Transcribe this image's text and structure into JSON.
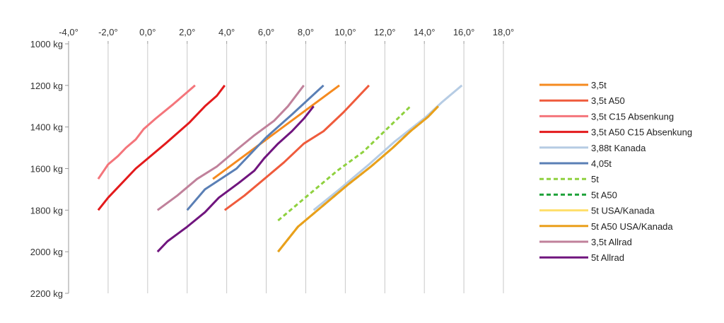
{
  "chart_data": {
    "type": "line",
    "title": "",
    "xlabel": "",
    "ylabel": "",
    "x_axis_position": "top",
    "y_axis_reversed": true,
    "xlim": [
      -4,
      18
    ],
    "ylim": [
      1000,
      2200
    ],
    "x_ticks": [
      -4,
      -2,
      0,
      2,
      4,
      6,
      8,
      10,
      12,
      14,
      16,
      18
    ],
    "x_tick_labels": [
      "-4,0°",
      "-2,0°",
      "0,0°",
      "2,0°",
      "4,0°",
      "6,0°",
      "8,0°",
      "10,0°",
      "12,0°",
      "14,0°",
      "16,0°",
      "18,0°"
    ],
    "y_ticks": [
      1000,
      1200,
      1400,
      1600,
      1800,
      2000,
      2200
    ],
    "y_tick_labels": [
      "1000 kg",
      "1200 kg",
      "1400 kg",
      "1600 kg",
      "1800 kg",
      "2000 kg",
      "2200 kg"
    ],
    "grid": "vertical",
    "legend": "right",
    "series": [
      {
        "name": "3,5t",
        "color": "#f58a1f",
        "dash": false,
        "points": [
          [
            3.3,
            1650
          ],
          [
            9.7,
            1200
          ]
        ]
      },
      {
        "name": "3,5t A50",
        "color": "#ef5b3c",
        "dash": false,
        "points": [
          [
            3.9,
            1800
          ],
          [
            4.9,
            1730
          ],
          [
            5.9,
            1650
          ],
          [
            6.9,
            1570
          ],
          [
            7.9,
            1480
          ],
          [
            8.9,
            1420
          ],
          [
            9.9,
            1330
          ],
          [
            11.2,
            1200
          ]
        ]
      },
      {
        "name": "3,5t C15 Absenkung",
        "color": "#f4757b",
        "dash": false,
        "points": [
          [
            -2.5,
            1650
          ],
          [
            -2.0,
            1580
          ],
          [
            -1.5,
            1540
          ],
          [
            -1.1,
            1500
          ],
          [
            -0.6,
            1460
          ],
          [
            -0.2,
            1410
          ],
          [
            0.4,
            1360
          ],
          [
            1.3,
            1290
          ],
          [
            2.4,
            1200
          ]
        ]
      },
      {
        "name": "3,5t A50 C15 Absenkung",
        "color": "#e31a1c",
        "dash": false,
        "points": [
          [
            -2.5,
            1800
          ],
          [
            -2.0,
            1740
          ],
          [
            -0.6,
            1600
          ],
          [
            0.9,
            1480
          ],
          [
            2.1,
            1380
          ],
          [
            2.9,
            1300
          ],
          [
            3.5,
            1250
          ],
          [
            3.9,
            1200
          ]
        ]
      },
      {
        "name": "3,88t Kanada",
        "color": "#b6cce4",
        "dash": false,
        "points": [
          [
            8.4,
            1800
          ],
          [
            9.7,
            1700
          ],
          [
            11.2,
            1580
          ],
          [
            12.5,
            1470
          ],
          [
            14.1,
            1350
          ],
          [
            14.9,
            1280
          ],
          [
            15.9,
            1200
          ]
        ]
      },
      {
        "name": "4,05t",
        "color": "#5a7fb5",
        "dash": false,
        "points": [
          [
            2.0,
            1800
          ],
          [
            2.9,
            1700
          ],
          [
            4.5,
            1600
          ],
          [
            6.0,
            1450
          ],
          [
            7.3,
            1340
          ],
          [
            8.9,
            1200
          ]
        ]
      },
      {
        "name": "5t",
        "color": "#8fd13f",
        "dash": true,
        "points": [
          [
            6.6,
            1850
          ],
          [
            8.1,
            1730
          ],
          [
            9.6,
            1610
          ],
          [
            10.9,
            1520
          ],
          [
            12.1,
            1410
          ],
          [
            13.3,
            1300
          ]
        ]
      },
      {
        "name": "5t A50",
        "color": "#1fa23a",
        "dash": true,
        "points": [
          [
            6.6,
            2000
          ],
          [
            7.6,
            1880
          ],
          [
            9.1,
            1760
          ],
          [
            10.1,
            1680
          ],
          [
            11.3,
            1590
          ],
          [
            12.4,
            1500
          ],
          [
            13.3,
            1420
          ],
          [
            14.2,
            1350
          ],
          [
            14.7,
            1300
          ]
        ]
      },
      {
        "name": "5t USA/Kanada",
        "color": "#ffdf6b",
        "dash": false,
        "points": [
          [
            6.6,
            2000
          ],
          [
            7.6,
            1880
          ],
          [
            9.1,
            1760
          ],
          [
            10.1,
            1680
          ],
          [
            11.3,
            1590
          ],
          [
            12.4,
            1500
          ],
          [
            13.3,
            1420
          ],
          [
            14.2,
            1350
          ],
          [
            14.7,
            1300
          ]
        ]
      },
      {
        "name": "5t A50 USA/Kanada",
        "color": "#ea9f1b",
        "dash": false,
        "points": [
          [
            6.6,
            2000
          ],
          [
            7.6,
            1880
          ],
          [
            9.1,
            1760
          ],
          [
            10.1,
            1680
          ],
          [
            11.3,
            1590
          ],
          [
            12.4,
            1500
          ],
          [
            13.3,
            1420
          ],
          [
            14.2,
            1350
          ],
          [
            14.7,
            1300
          ]
        ]
      },
      {
        "name": "3,5t Allrad",
        "color": "#c0819b",
        "dash": false,
        "points": [
          [
            0.5,
            1800
          ],
          [
            1.5,
            1730
          ],
          [
            2.5,
            1650
          ],
          [
            3.5,
            1590
          ],
          [
            4.5,
            1510
          ],
          [
            5.4,
            1440
          ],
          [
            6.4,
            1370
          ],
          [
            7.1,
            1300
          ],
          [
            7.9,
            1200
          ]
        ]
      },
      {
        "name": "5t Allrad",
        "color": "#70157e",
        "dash": false,
        "points": [
          [
            0.5,
            2000
          ],
          [
            1.0,
            1950
          ],
          [
            2.0,
            1880
          ],
          [
            2.9,
            1810
          ],
          [
            3.6,
            1740
          ],
          [
            4.6,
            1670
          ],
          [
            5.4,
            1610
          ],
          [
            5.9,
            1550
          ],
          [
            6.6,
            1480
          ],
          [
            7.3,
            1420
          ],
          [
            7.9,
            1360
          ],
          [
            8.4,
            1300
          ]
        ]
      }
    ]
  }
}
